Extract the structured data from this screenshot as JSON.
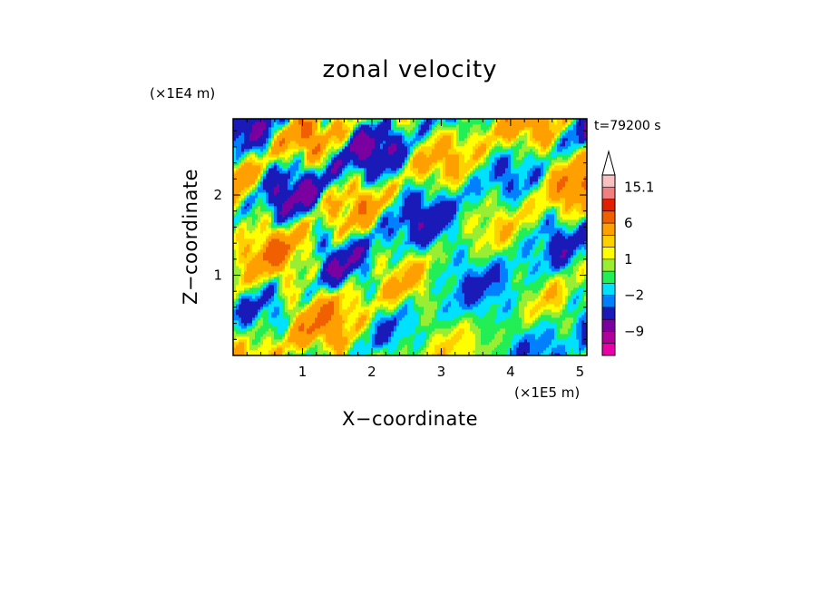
{
  "chart_data": {
    "type": "heatmap",
    "title": "zonal velocity",
    "xlabel": "X−coordinate",
    "ylabel": "Z−coordinate",
    "x_unit": "(×1E5 m)",
    "y_unit": "(×1E4 m)",
    "time_label": "t=79200 s",
    "xlim": [
      0,
      5.1
    ],
    "ylim": [
      0,
      2.95
    ],
    "x_ticks": [
      1,
      2,
      3,
      4,
      5
    ],
    "y_ticks": [
      1,
      2
    ],
    "colorbar": {
      "levels": [
        -15,
        -12,
        -9,
        -6,
        -3,
        -2,
        -1,
        0,
        1,
        2,
        3,
        6,
        9,
        12,
        15.1
      ],
      "labels": [
        "15.1",
        "6",
        "1",
        "−2",
        "−9"
      ],
      "label_values": [
        15.1,
        6,
        1,
        -2,
        -9
      ],
      "colors": [
        "#e800a8",
        "#b0009c",
        "#7a00a0",
        "#1a1ab8",
        "#0080ff",
        "#00e0ff",
        "#22ee55",
        "#99ee33",
        "#ffff00",
        "#ffd000",
        "#ffa000",
        "#f06000",
        "#e02000",
        "#f08080",
        "#f8c0c0"
      ],
      "extend_max": true
    },
    "field_range": [
      -10,
      10
    ]
  }
}
